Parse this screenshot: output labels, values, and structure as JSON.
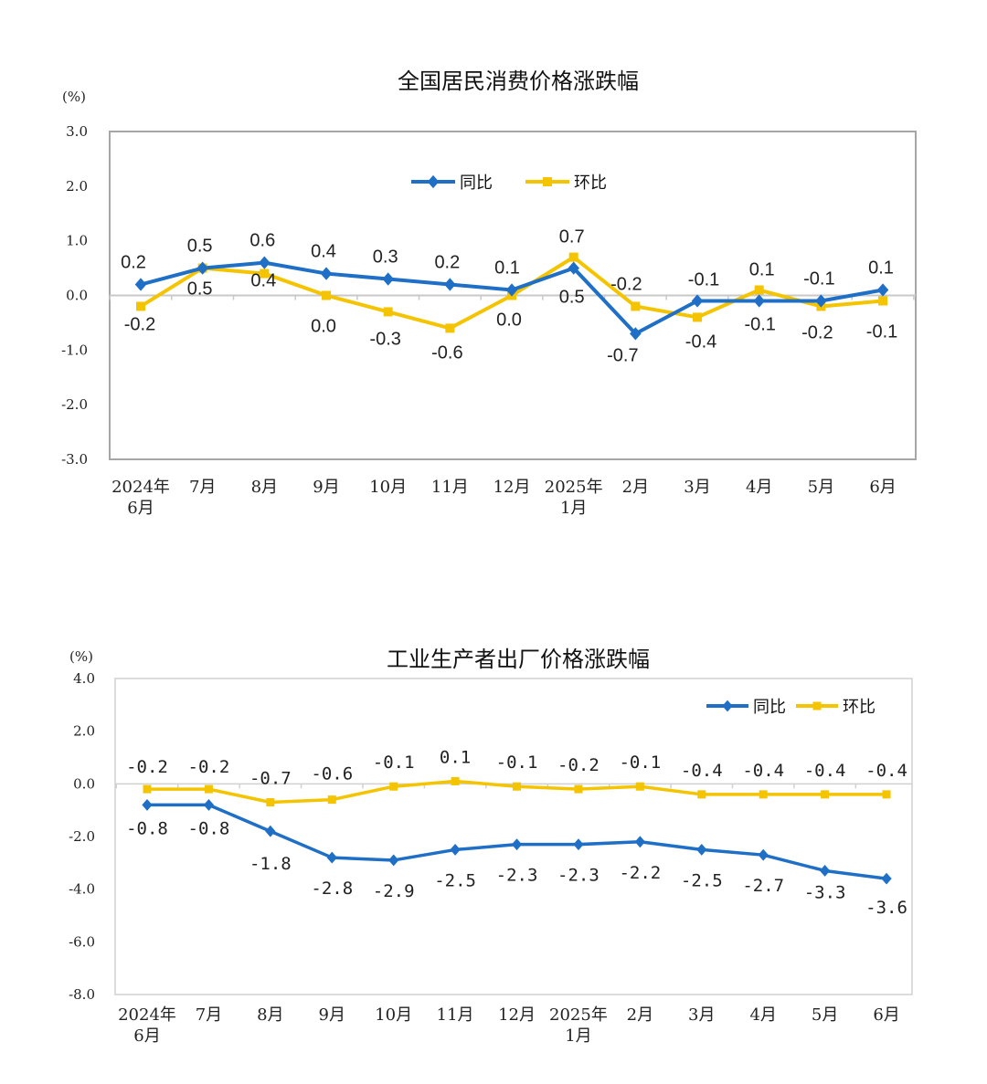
{
  "chart_data": [
    {
      "type": "line",
      "title": "全国居民消费价格涨跌幅",
      "ylabel": "(%)",
      "ylim": [
        -3.0,
        3.0
      ],
      "yticks": [
        "3.0",
        "2.0",
        "1.0",
        "0.0",
        "-1.0",
        "-2.0",
        "-3.0"
      ],
      "categories": [
        [
          "2024年",
          "6月"
        ],
        [
          "7月"
        ],
        [
          "8月"
        ],
        [
          "9月"
        ],
        [
          "10月"
        ],
        [
          "11月"
        ],
        [
          "12月"
        ],
        [
          "2025年",
          "1月"
        ],
        [
          "2月"
        ],
        [
          "3月"
        ],
        [
          "4月"
        ],
        [
          "5月"
        ],
        [
          "6月"
        ]
      ],
      "legend_position": "top-center",
      "series": [
        {
          "name": "同比",
          "color": "#1f6fc6",
          "marker": "diamond",
          "values": [
            0.2,
            0.5,
            0.6,
            0.4,
            0.3,
            0.2,
            0.1,
            0.5,
            -0.7,
            -0.1,
            -0.1,
            -0.1,
            0.1
          ],
          "labels": [
            "0.2",
            "0.5",
            "0.6",
            "0.4",
            "0.3",
            "0.2",
            "0.1",
            "0.5",
            "-0.7",
            "-0.1",
            "-0.1",
            "-0.1",
            "0.1"
          ]
        },
        {
          "name": "环比",
          "color": "#f5c400",
          "marker": "square",
          "values": [
            -0.2,
            0.5,
            0.4,
            0.0,
            -0.3,
            -0.6,
            0.0,
            0.7,
            -0.2,
            -0.4,
            0.1,
            -0.2,
            -0.1
          ],
          "labels": [
            "-0.2",
            "0.5",
            "0.4",
            "0.0",
            "-0.3",
            "-0.6",
            "0.0",
            "0.7",
            "-0.2",
            "-0.4",
            "0.1",
            "-0.2",
            "-0.1"
          ]
        }
      ]
    },
    {
      "type": "line",
      "title": "工业生产者出厂价格涨跌幅",
      "ylabel": "(%)",
      "ylim": [
        -8.0,
        4.0
      ],
      "yticks": [
        "4.0",
        "2.0",
        "0.0",
        "-2.0",
        "-4.0",
        "-6.0",
        "-8.0"
      ],
      "categories": [
        [
          "2024年",
          "6月"
        ],
        [
          "7月"
        ],
        [
          "8月"
        ],
        [
          "9月"
        ],
        [
          "10月"
        ],
        [
          "11月"
        ],
        [
          "12月"
        ],
        [
          "2025年",
          "1月"
        ],
        [
          "2月"
        ],
        [
          "3月"
        ],
        [
          "4月"
        ],
        [
          "5月"
        ],
        [
          "6月"
        ]
      ],
      "legend_position": "top-right",
      "series": [
        {
          "name": "同比",
          "color": "#1f6fc6",
          "marker": "diamond",
          "values": [
            -0.8,
            -0.8,
            -1.8,
            -2.8,
            -2.9,
            -2.5,
            -2.3,
            -2.3,
            -2.2,
            -2.5,
            -2.7,
            -3.3,
            -3.6
          ],
          "labels": [
            "-0.8",
            "-0.8",
            "-1.8",
            "-2.8",
            "-2.9",
            "-2.5",
            "-2.3",
            "-2.3",
            "-2.2",
            "-2.5",
            "-2.7",
            "-3.3",
            "-3.6"
          ]
        },
        {
          "name": "环比",
          "color": "#f5c400",
          "marker": "square",
          "values": [
            -0.2,
            -0.2,
            -0.7,
            -0.6,
            -0.1,
            0.1,
            -0.1,
            -0.2,
            -0.1,
            -0.4,
            -0.4,
            -0.4,
            -0.4
          ],
          "labels": [
            "-0.2",
            "-0.2",
            "-0.7",
            "-0.6",
            "-0.1",
            "0.1",
            "-0.1",
            "-0.2",
            "-0.1",
            "-0.4",
            "-0.4",
            "-0.4",
            "-0.4"
          ]
        }
      ]
    }
  ]
}
